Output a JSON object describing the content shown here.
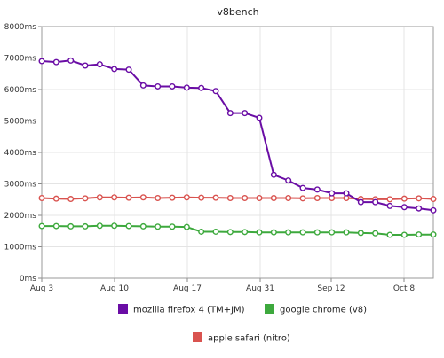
{
  "chart_data": {
    "type": "line",
    "title": "v8bench",
    "xlabel": "",
    "ylabel": "",
    "x_ticks": [
      "Aug 3",
      "Aug 10",
      "Aug 17",
      "Aug 31",
      "Sep 12",
      "Oct 8"
    ],
    "y_ticks": [
      "0ms",
      "1000ms",
      "2000ms",
      "3000ms",
      "4000ms",
      "5000ms",
      "6000ms",
      "7000ms",
      "8000ms"
    ],
    "ylim": [
      0,
      8000
    ],
    "grid": true,
    "legend_position": "bottom",
    "series": [
      {
        "name": "mozilla firefox 4 (TM+JM)",
        "color": "#6a0da5",
        "values": [
          6900,
          6870,
          6920,
          6760,
          6800,
          6650,
          6630,
          6130,
          6100,
          6100,
          6060,
          6050,
          5950,
          5250,
          5250,
          5100,
          3290,
          3110,
          2870,
          2820,
          2700,
          2700,
          2420,
          2420,
          2300,
          2260,
          2220,
          2160
        ]
      },
      {
        "name": "google chrome (v8)",
        "color": "#3da93d",
        "values": [
          1660,
          1660,
          1650,
          1650,
          1670,
          1670,
          1660,
          1650,
          1640,
          1640,
          1630,
          1480,
          1480,
          1470,
          1470,
          1460,
          1460,
          1460,
          1460,
          1460,
          1460,
          1460,
          1440,
          1430,
          1380,
          1380,
          1390,
          1390
        ]
      },
      {
        "name": "apple safari (nitro)",
        "color": "#d9534f",
        "values": [
          2550,
          2530,
          2520,
          2540,
          2570,
          2570,
          2560,
          2570,
          2550,
          2560,
          2570,
          2560,
          2560,
          2550,
          2550,
          2550,
          2550,
          2550,
          2540,
          2550,
          2550,
          2550,
          2520,
          2510,
          2510,
          2530,
          2540,
          2520
        ]
      }
    ]
  }
}
